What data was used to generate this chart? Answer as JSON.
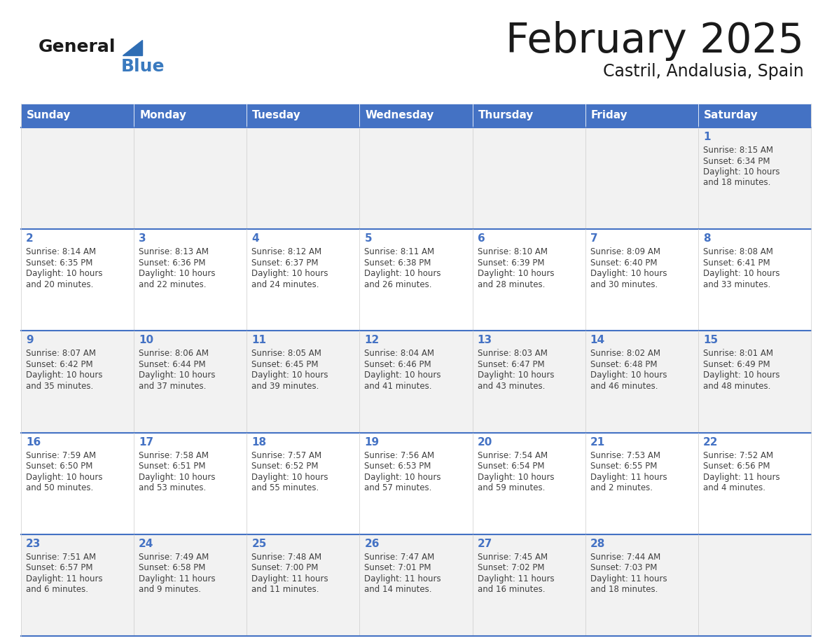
{
  "title": "February 2025",
  "subtitle": "Castril, Andalusia, Spain",
  "header_bg": "#4472C4",
  "header_text": "#FFFFFF",
  "row_bg_odd": "#F2F2F2",
  "row_bg_even": "#FFFFFF",
  "border_color": "#4472C4",
  "day_number_color": "#4472C4",
  "cell_text_color": "#404040",
  "logo_black": "#1a1a1a",
  "logo_blue": "#3a7abf",
  "triangle_color": "#2e6db4",
  "days_of_week": [
    "Sunday",
    "Monday",
    "Tuesday",
    "Wednesday",
    "Thursday",
    "Friday",
    "Saturday"
  ],
  "calendar_data": [
    [
      null,
      null,
      null,
      null,
      null,
      null,
      {
        "day": 1,
        "sunrise": "8:15 AM",
        "sunset": "6:34 PM",
        "daylight": "10 hours\nand 18 minutes."
      }
    ],
    [
      {
        "day": 2,
        "sunrise": "8:14 AM",
        "sunset": "6:35 PM",
        "daylight": "10 hours\nand 20 minutes."
      },
      {
        "day": 3,
        "sunrise": "8:13 AM",
        "sunset": "6:36 PM",
        "daylight": "10 hours\nand 22 minutes."
      },
      {
        "day": 4,
        "sunrise": "8:12 AM",
        "sunset": "6:37 PM",
        "daylight": "10 hours\nand 24 minutes."
      },
      {
        "day": 5,
        "sunrise": "8:11 AM",
        "sunset": "6:38 PM",
        "daylight": "10 hours\nand 26 minutes."
      },
      {
        "day": 6,
        "sunrise": "8:10 AM",
        "sunset": "6:39 PM",
        "daylight": "10 hours\nand 28 minutes."
      },
      {
        "day": 7,
        "sunrise": "8:09 AM",
        "sunset": "6:40 PM",
        "daylight": "10 hours\nand 30 minutes."
      },
      {
        "day": 8,
        "sunrise": "8:08 AM",
        "sunset": "6:41 PM",
        "daylight": "10 hours\nand 33 minutes."
      }
    ],
    [
      {
        "day": 9,
        "sunrise": "8:07 AM",
        "sunset": "6:42 PM",
        "daylight": "10 hours\nand 35 minutes."
      },
      {
        "day": 10,
        "sunrise": "8:06 AM",
        "sunset": "6:44 PM",
        "daylight": "10 hours\nand 37 minutes."
      },
      {
        "day": 11,
        "sunrise": "8:05 AM",
        "sunset": "6:45 PM",
        "daylight": "10 hours\nand 39 minutes."
      },
      {
        "day": 12,
        "sunrise": "8:04 AM",
        "sunset": "6:46 PM",
        "daylight": "10 hours\nand 41 minutes."
      },
      {
        "day": 13,
        "sunrise": "8:03 AM",
        "sunset": "6:47 PM",
        "daylight": "10 hours\nand 43 minutes."
      },
      {
        "day": 14,
        "sunrise": "8:02 AM",
        "sunset": "6:48 PM",
        "daylight": "10 hours\nand 46 minutes."
      },
      {
        "day": 15,
        "sunrise": "8:01 AM",
        "sunset": "6:49 PM",
        "daylight": "10 hours\nand 48 minutes."
      }
    ],
    [
      {
        "day": 16,
        "sunrise": "7:59 AM",
        "sunset": "6:50 PM",
        "daylight": "10 hours\nand 50 minutes."
      },
      {
        "day": 17,
        "sunrise": "7:58 AM",
        "sunset": "6:51 PM",
        "daylight": "10 hours\nand 53 minutes."
      },
      {
        "day": 18,
        "sunrise": "7:57 AM",
        "sunset": "6:52 PM",
        "daylight": "10 hours\nand 55 minutes."
      },
      {
        "day": 19,
        "sunrise": "7:56 AM",
        "sunset": "6:53 PM",
        "daylight": "10 hours\nand 57 minutes."
      },
      {
        "day": 20,
        "sunrise": "7:54 AM",
        "sunset": "6:54 PM",
        "daylight": "10 hours\nand 59 minutes."
      },
      {
        "day": 21,
        "sunrise": "7:53 AM",
        "sunset": "6:55 PM",
        "daylight": "11 hours\nand 2 minutes."
      },
      {
        "day": 22,
        "sunrise": "7:52 AM",
        "sunset": "6:56 PM",
        "daylight": "11 hours\nand 4 minutes."
      }
    ],
    [
      {
        "day": 23,
        "sunrise": "7:51 AM",
        "sunset": "6:57 PM",
        "daylight": "11 hours\nand 6 minutes."
      },
      {
        "day": 24,
        "sunrise": "7:49 AM",
        "sunset": "6:58 PM",
        "daylight": "11 hours\nand 9 minutes."
      },
      {
        "day": 25,
        "sunrise": "7:48 AM",
        "sunset": "7:00 PM",
        "daylight": "11 hours\nand 11 minutes."
      },
      {
        "day": 26,
        "sunrise": "7:47 AM",
        "sunset": "7:01 PM",
        "daylight": "11 hours\nand 14 minutes."
      },
      {
        "day": 27,
        "sunrise": "7:45 AM",
        "sunset": "7:02 PM",
        "daylight": "11 hours\nand 16 minutes."
      },
      {
        "day": 28,
        "sunrise": "7:44 AM",
        "sunset": "7:03 PM",
        "daylight": "11 hours\nand 18 minutes."
      },
      null
    ]
  ]
}
